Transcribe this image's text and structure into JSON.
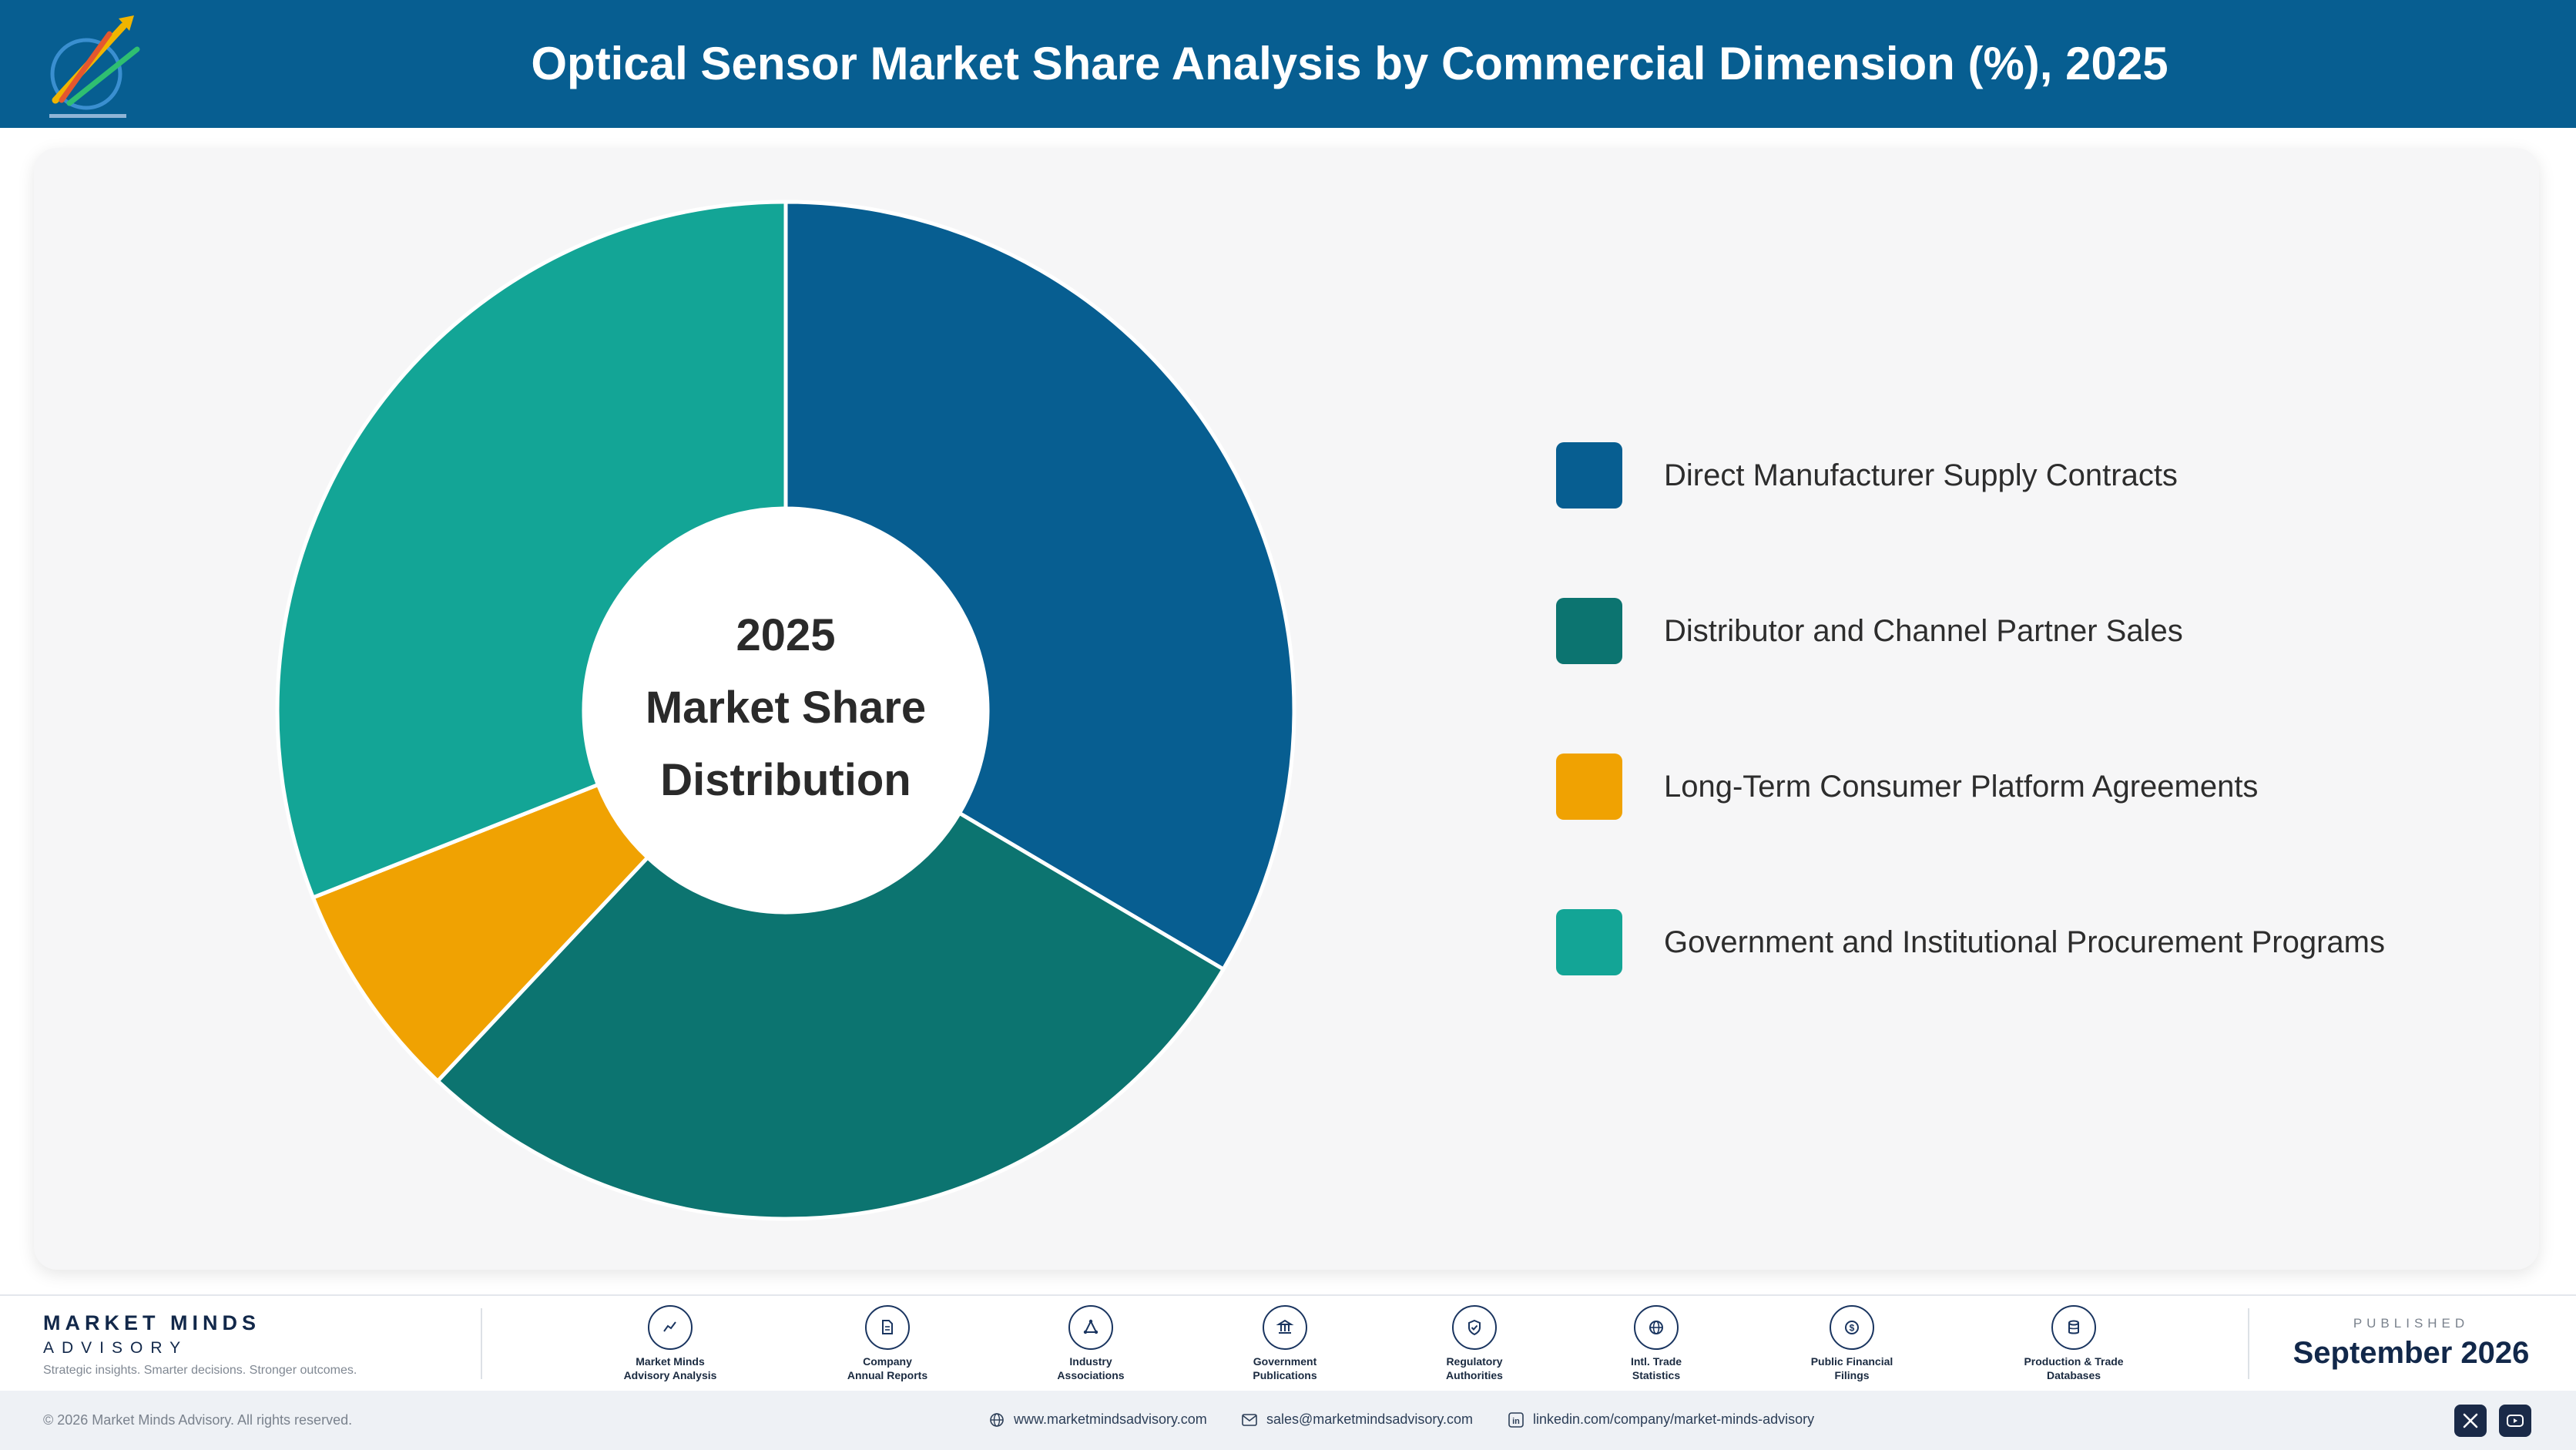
{
  "header": {
    "title": "Optical Sensor Market Share Analysis by Commercial Dimension (%), 2025"
  },
  "chart_data": {
    "type": "pie",
    "center_label": [
      "2025",
      "Market Share",
      "Distribution"
    ],
    "categories": [
      "Direct Manufacturer Supply Contracts",
      "Distributor and Channel Partner Sales",
      "Long-Term Consumer Platform Agreements",
      "Government and Institutional Procurement Programs"
    ],
    "values": [
      33.5,
      28.5,
      7.0,
      31.0
    ],
    "colors": [
      "#075e91",
      "#0c7470",
      "#f0a202",
      "#13a596"
    ],
    "legend_position": "right",
    "donut": true
  },
  "footer": {
    "brand_name": "MARKET MINDS",
    "brand_sub": "ADVISORY",
    "tagline": "Strategic insights. Smarter decisions. Stronger outcomes.",
    "sources": [
      {
        "icon": "chart-line-icon",
        "line1": "Market Minds",
        "line2": "Advisory Analysis"
      },
      {
        "icon": "document-icon",
        "line1": "Company",
        "line2": "Annual Reports"
      },
      {
        "icon": "network-icon",
        "line1": "Industry",
        "line2": "Associations"
      },
      {
        "icon": "government-building-icon",
        "line1": "Government",
        "line2": "Publications"
      },
      {
        "icon": "shield-check-icon",
        "line1": "Regulatory",
        "line2": "Authorities"
      },
      {
        "icon": "globe-icon",
        "line1": "Intl. Trade",
        "line2": "Statistics"
      },
      {
        "icon": "dollar-coin-icon",
        "line1": "Public Financial",
        "line2": "Filings"
      },
      {
        "icon": "database-icon",
        "line1": "Production & Trade",
        "line2": "Databases"
      }
    ],
    "published_label": "PUBLISHED",
    "published_date": "September 2026"
  },
  "bottom_bar": {
    "copyright": "© 2026 Market Minds Advisory. All rights reserved.",
    "website": "www.marketmindsadvisory.com",
    "email": "sales@marketmindsadvisory.com",
    "linkedin": "linkedin.com/company/market-minds-advisory"
  }
}
